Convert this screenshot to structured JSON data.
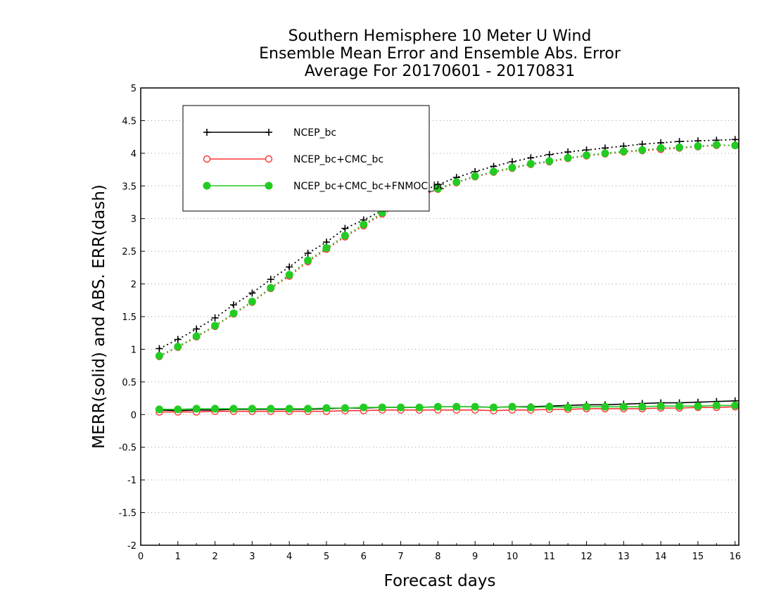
{
  "chart_data": {
    "type": "line",
    "title_lines": [
      "Southern Hemisphere 10 Meter U Wind",
      "Ensemble Mean Error and Ensemble Abs. Error",
      "Average For 20170601 - 20170831"
    ],
    "xlabel": "Forecast days",
    "ylabel": "MERR(solid) and ABS. ERR(dash)",
    "xlim": [
      0,
      16.1
    ],
    "ylim": [
      -2,
      5
    ],
    "xticks": [
      "0",
      "1",
      "2",
      "3",
      "4",
      "5",
      "6",
      "7",
      "8",
      "9",
      "10",
      "11",
      "12",
      "13",
      "14",
      "15",
      "16"
    ],
    "yticks": [
      "5",
      "4.5",
      "4",
      "3.5",
      "3",
      "2.5",
      "2",
      "1.5",
      "1",
      "0.5",
      "0",
      "-0.5",
      "-1",
      "-1.5",
      "-2"
    ],
    "grid": "dotted horizontal",
    "legend_position": "top-left",
    "x": [
      0.5,
      1,
      1.5,
      2,
      2.5,
      3,
      3.5,
      4,
      4.5,
      5,
      5.5,
      6,
      6.5,
      7,
      7.5,
      8,
      8.5,
      9,
      9.5,
      10,
      10.5,
      11,
      11.5,
      12,
      12.5,
      13,
      13.5,
      14,
      14.5,
      15,
      15.5,
      16
    ],
    "series": [
      {
        "name": "NCEP_bc",
        "color": "#000000",
        "marker": "plus",
        "merr": [
          0.07,
          0.06,
          0.07,
          0.07,
          0.08,
          0.08,
          0.08,
          0.08,
          0.08,
          0.09,
          0.1,
          0.1,
          0.11,
          0.11,
          0.11,
          0.12,
          0.12,
          0.12,
          0.11,
          0.12,
          0.12,
          0.13,
          0.14,
          0.15,
          0.15,
          0.16,
          0.17,
          0.18,
          0.18,
          0.19,
          0.2,
          0.21
        ],
        "abs_err": [
          1.01,
          1.15,
          1.31,
          1.48,
          1.68,
          1.86,
          2.07,
          2.26,
          2.47,
          2.64,
          2.85,
          2.98,
          3.12,
          3.28,
          3.4,
          3.52,
          3.63,
          3.72,
          3.8,
          3.87,
          3.93,
          3.98,
          4.02,
          4.05,
          4.08,
          4.11,
          4.14,
          4.16,
          4.18,
          4.19,
          4.2,
          4.21
        ]
      },
      {
        "name": "NCEP_bc+CMC_bc",
        "color": "#ff3333",
        "marker": "open-circle",
        "merr": [
          0.04,
          0.04,
          0.04,
          0.05,
          0.05,
          0.05,
          0.05,
          0.05,
          0.05,
          0.05,
          0.06,
          0.06,
          0.07,
          0.07,
          0.07,
          0.07,
          0.07,
          0.07,
          0.06,
          0.07,
          0.07,
          0.08,
          0.08,
          0.09,
          0.09,
          0.09,
          0.09,
          0.1,
          0.1,
          0.11,
          0.11,
          0.12
        ],
        "abs_err": [
          0.89,
          1.03,
          1.19,
          1.35,
          1.54,
          1.72,
          1.93,
          2.12,
          2.34,
          2.53,
          2.72,
          2.89,
          3.07,
          3.2,
          3.34,
          3.45,
          3.55,
          3.64,
          3.71,
          3.77,
          3.83,
          3.87,
          3.92,
          3.96,
          3.99,
          4.02,
          4.04,
          4.06,
          4.08,
          4.1,
          4.12,
          4.12
        ]
      },
      {
        "name": "NCEP_bc+CMC_bc+FNMOC_bc",
        "color": "#22cc22",
        "marker": "filled-circle",
        "merr": [
          0.08,
          0.08,
          0.09,
          0.09,
          0.09,
          0.09,
          0.09,
          0.09,
          0.09,
          0.1,
          0.1,
          0.11,
          0.11,
          0.11,
          0.11,
          0.12,
          0.12,
          0.12,
          0.11,
          0.12,
          0.11,
          0.12,
          0.11,
          0.12,
          0.12,
          0.12,
          0.12,
          0.13,
          0.13,
          0.13,
          0.14,
          0.14
        ],
        "abs_err": [
          0.9,
          1.04,
          1.2,
          1.36,
          1.55,
          1.73,
          1.94,
          2.14,
          2.36,
          2.55,
          2.74,
          2.91,
          3.09,
          3.22,
          3.36,
          3.46,
          3.56,
          3.65,
          3.72,
          3.78,
          3.84,
          3.88,
          3.93,
          3.97,
          4.0,
          4.03,
          4.05,
          4.08,
          4.09,
          4.11,
          4.13,
          4.12
        ]
      }
    ]
  }
}
